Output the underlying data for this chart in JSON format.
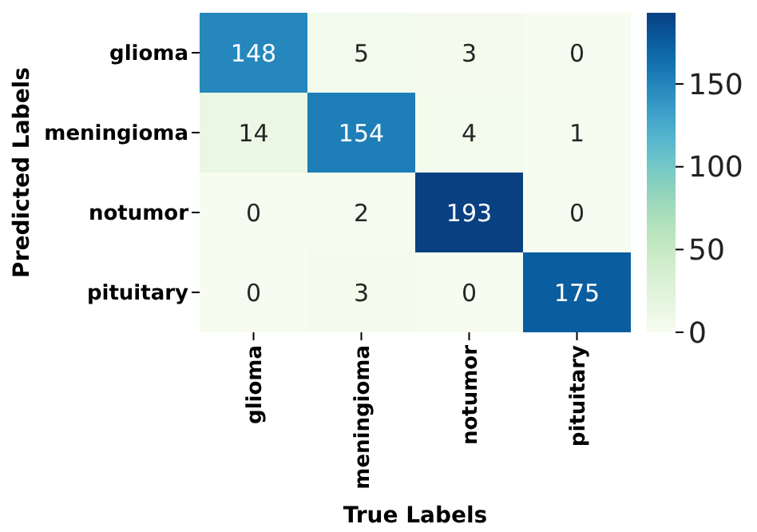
{
  "chart_data": {
    "type": "heatmap",
    "xlabel": "True Labels",
    "ylabel": "Predicted Labels",
    "categories": [
      "glioma",
      "meningioma",
      "notumor",
      "pituitary"
    ],
    "y_categories": [
      "glioma",
      "meningioma",
      "notumor",
      "pituitary"
    ],
    "cells": [
      [
        148,
        5,
        3,
        0
      ],
      [
        14,
        154,
        4,
        1
      ],
      [
        0,
        2,
        193,
        0
      ],
      [
        0,
        3,
        0,
        175
      ]
    ],
    "data_labels": true,
    "clim": [
      0,
      193
    ],
    "cticks": [
      0,
      50,
      100,
      150
    ]
  }
}
